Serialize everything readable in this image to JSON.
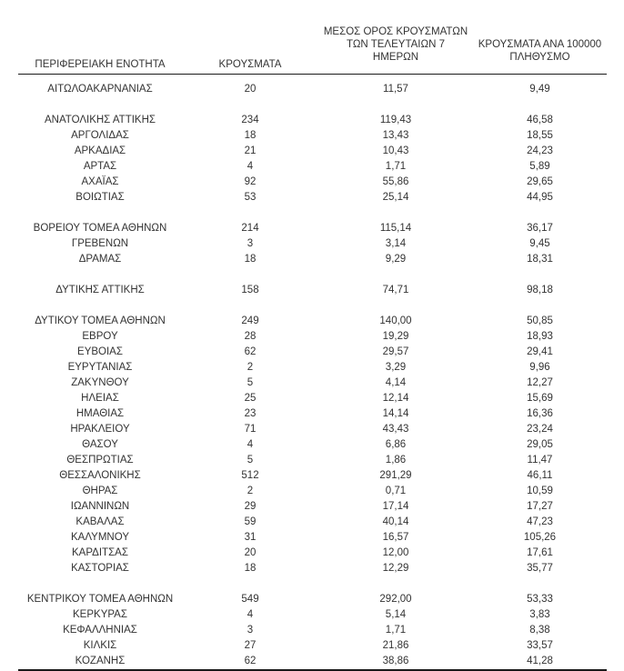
{
  "colors": {
    "background": "#ffffff",
    "text": "#333333",
    "rule": "#1a1a1a"
  },
  "table": {
    "columns": [
      {
        "id": "region",
        "label": "ΠΕΡΙΦΕΡΕΙΑΚΗ ΕΝΟΤΗΤΑ"
      },
      {
        "id": "cases",
        "label": "ΚΡΟΥΣΜΑΤΑ"
      },
      {
        "id": "avg7",
        "label": "ΜΕΣΟΣ ΟΡΟΣ ΚΡΟΥΣΜΑΤΩΝ\nΤΩΝ ΤΕΛΕΥΤΑΙΩΝ 7\nΗΜΕΡΩΝ"
      },
      {
        "id": "per100k",
        "label": "ΚΡΟΥΣΜΑΤΑ ΑΝΑ 100000\nΠΛΗΘΥΣΜΟ"
      }
    ],
    "rows": [
      {
        "region": "ΑΙΤΩΛΟΑΚΑΡΝΑΝΙΑΣ",
        "cases": "20",
        "avg7": "11,57",
        "per100k": "9,49"
      },
      {
        "region": "ΑΝΑΤΟΛΙΚΗΣ ΑΤΤΙΚΗΣ",
        "cases": "234",
        "avg7": "119,43",
        "per100k": "46,58",
        "gap_before": true
      },
      {
        "region": "ΑΡΓΟΛΙΔΑΣ",
        "cases": "18",
        "avg7": "13,43",
        "per100k": "18,55"
      },
      {
        "region": "ΑΡΚΑΔΙΑΣ",
        "cases": "21",
        "avg7": "10,43",
        "per100k": "24,23"
      },
      {
        "region": "ΑΡΤΑΣ",
        "cases": "4",
        "avg7": "1,71",
        "per100k": "5,89"
      },
      {
        "region": "ΑΧΑΪΑΣ",
        "cases": "92",
        "avg7": "55,86",
        "per100k": "29,65"
      },
      {
        "region": "ΒΟΙΩΤΙΑΣ",
        "cases": "53",
        "avg7": "25,14",
        "per100k": "44,95"
      },
      {
        "region": "ΒΟΡΕΙΟΥ ΤΟΜΕΑ ΑΘΗΝΩΝ",
        "cases": "214",
        "avg7": "115,14",
        "per100k": "36,17",
        "gap_before": true
      },
      {
        "region": "ΓΡΕΒΕΝΩΝ",
        "cases": "3",
        "avg7": "3,14",
        "per100k": "9,45"
      },
      {
        "region": "ΔΡΑΜΑΣ",
        "cases": "18",
        "avg7": "9,29",
        "per100k": "18,31"
      },
      {
        "region": "ΔΥΤΙΚΗΣ ΑΤΤΙΚΗΣ",
        "cases": "158",
        "avg7": "74,71",
        "per100k": "98,18",
        "gap_before": true
      },
      {
        "region": "ΔΥΤΙΚΟΥ ΤΟΜΕΑ ΑΘΗΝΩΝ",
        "cases": "249",
        "avg7": "140,00",
        "per100k": "50,85",
        "gap_before": true
      },
      {
        "region": "ΕΒΡΟΥ",
        "cases": "28",
        "avg7": "19,29",
        "per100k": "18,93"
      },
      {
        "region": "ΕΥΒΟΙΑΣ",
        "cases": "62",
        "avg7": "29,57",
        "per100k": "29,41"
      },
      {
        "region": "ΕΥΡΥΤΑΝΙΑΣ",
        "cases": "2",
        "avg7": "3,29",
        "per100k": "9,96"
      },
      {
        "region": "ΖΑΚΥΝΘΟΥ",
        "cases": "5",
        "avg7": "4,14",
        "per100k": "12,27"
      },
      {
        "region": "ΗΛΕΙΑΣ",
        "cases": "25",
        "avg7": "12,14",
        "per100k": "15,69"
      },
      {
        "region": "ΗΜΑΘΙΑΣ",
        "cases": "23",
        "avg7": "14,14",
        "per100k": "16,36"
      },
      {
        "region": "ΗΡΑΚΛΕΙΟΥ",
        "cases": "71",
        "avg7": "43,43",
        "per100k": "23,24"
      },
      {
        "region": "ΘΑΣΟΥ",
        "cases": "4",
        "avg7": "6,86",
        "per100k": "29,05"
      },
      {
        "region": "ΘΕΣΠΡΩΤΙΑΣ",
        "cases": "5",
        "avg7": "1,86",
        "per100k": "11,47"
      },
      {
        "region": "ΘΕΣΣΑΛΟΝΙΚΗΣ",
        "cases": "512",
        "avg7": "291,29",
        "per100k": "46,11"
      },
      {
        "region": "ΘΗΡΑΣ",
        "cases": "2",
        "avg7": "0,71",
        "per100k": "10,59"
      },
      {
        "region": "ΙΩΑΝΝΙΝΩΝ",
        "cases": "29",
        "avg7": "17,14",
        "per100k": "17,27"
      },
      {
        "region": "ΚΑΒΑΛΑΣ",
        "cases": "59",
        "avg7": "40,14",
        "per100k": "47,23"
      },
      {
        "region": "ΚΑΛΥΜΝΟΥ",
        "cases": "31",
        "avg7": "16,57",
        "per100k": "105,26"
      },
      {
        "region": "ΚΑΡΔΙΤΣΑΣ",
        "cases": "20",
        "avg7": "12,00",
        "per100k": "17,61"
      },
      {
        "region": "ΚΑΣΤΟΡΙΑΣ",
        "cases": "18",
        "avg7": "12,29",
        "per100k": "35,77"
      },
      {
        "region": "ΚΕΝΤΡΙΚΟΥ ΤΟΜΕΑ ΑΘΗΝΩΝ",
        "cases": "549",
        "avg7": "292,00",
        "per100k": "53,33",
        "gap_before": true
      },
      {
        "region": "ΚΕΡΚΥΡΑΣ",
        "cases": "4",
        "avg7": "5,14",
        "per100k": "3,83"
      },
      {
        "region": "ΚΕΦΑΛΛΗΝΙΑΣ",
        "cases": "3",
        "avg7": "1,71",
        "per100k": "8,38"
      },
      {
        "region": "ΚΙΛΚΙΣ",
        "cases": "27",
        "avg7": "21,86",
        "per100k": "33,57"
      },
      {
        "region": "ΚΟΖΑΝΗΣ",
        "cases": "62",
        "avg7": "38,86",
        "per100k": "41,28"
      }
    ]
  }
}
